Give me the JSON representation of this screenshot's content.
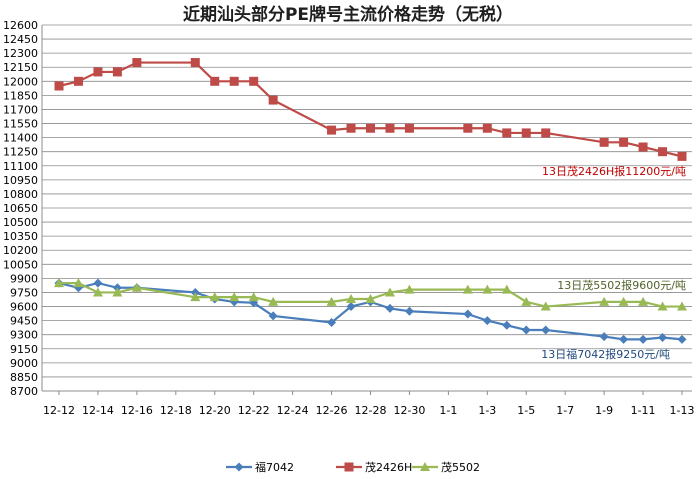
{
  "chart_data": {
    "type": "line",
    "title": "近期汕头部分PE牌号主流价格走势（无税）",
    "xlabel": "",
    "ylabel": "",
    "ylim": [
      8700,
      12600
    ],
    "yticks": [
      8700,
      8850,
      9000,
      9150,
      9300,
      9450,
      9600,
      9750,
      9900,
      10050,
      10200,
      10350,
      10500,
      10650,
      10800,
      10950,
      11100,
      11250,
      11400,
      11550,
      11700,
      11850,
      12000,
      12150,
      12300,
      12450,
      12600
    ],
    "x_tick_labels": [
      "12-12",
      "12-14",
      "12-16",
      "12-18",
      "12-20",
      "12-22",
      "12-24",
      "12-26",
      "12-28",
      "12-30",
      "1-1",
      "1-3",
      "1-5",
      "1-7",
      "1-9",
      "1-11",
      "1-13"
    ],
    "grid": "horizontal",
    "legend_position": "bottom",
    "x": [
      "12-12",
      "12-13",
      "12-14",
      "12-15",
      "12-16",
      "12-19",
      "12-20",
      "12-21",
      "12-22",
      "12-23",
      "12-26",
      "12-27",
      "12-28",
      "12-29",
      "12-30",
      "1-2",
      "1-3",
      "1-4",
      "1-5",
      "1-6",
      "1-9",
      "1-10",
      "1-11",
      "1-12",
      "1-13"
    ],
    "series": [
      {
        "name": "福7042",
        "color": "#4a7ebb",
        "marker": "diamond",
        "values": [
          9850,
          9800,
          9850,
          9800,
          9800,
          9750,
          9680,
          9650,
          9640,
          9500,
          9430,
          9600,
          9650,
          9580,
          9550,
          9520,
          9450,
          9400,
          9350,
          9350,
          9280,
          9250,
          9250,
          9270,
          9250
        ]
      },
      {
        "name": "茂2426H",
        "color": "#be4b48",
        "marker": "square",
        "values": [
          11950,
          12000,
          12100,
          12100,
          12200,
          12200,
          12000,
          12000,
          12000,
          11800,
          11480,
          11500,
          11500,
          11500,
          11500,
          11500,
          11500,
          11450,
          11450,
          11450,
          11350,
          11350,
          11300,
          11250,
          11200
        ]
      },
      {
        "name": "茂5502",
        "color": "#98b954",
        "marker": "triangle",
        "values": [
          9850,
          9850,
          9750,
          9750,
          9800,
          9700,
          9700,
          9700,
          9700,
          9650,
          9650,
          9680,
          9680,
          9750,
          9780,
          9780,
          9780,
          9780,
          9650,
          9600,
          9650,
          9650,
          9650,
          9600,
          9600
        ]
      }
    ],
    "annotations": [
      {
        "text": "13日茂2426H报11200元/吨",
        "color": "#c00000"
      },
      {
        "text": "13日茂5502报9600元/吨",
        "color": "#4f6228"
      },
      {
        "text": "13日福7042报9250元/吨",
        "color": "#1f497d"
      }
    ]
  }
}
